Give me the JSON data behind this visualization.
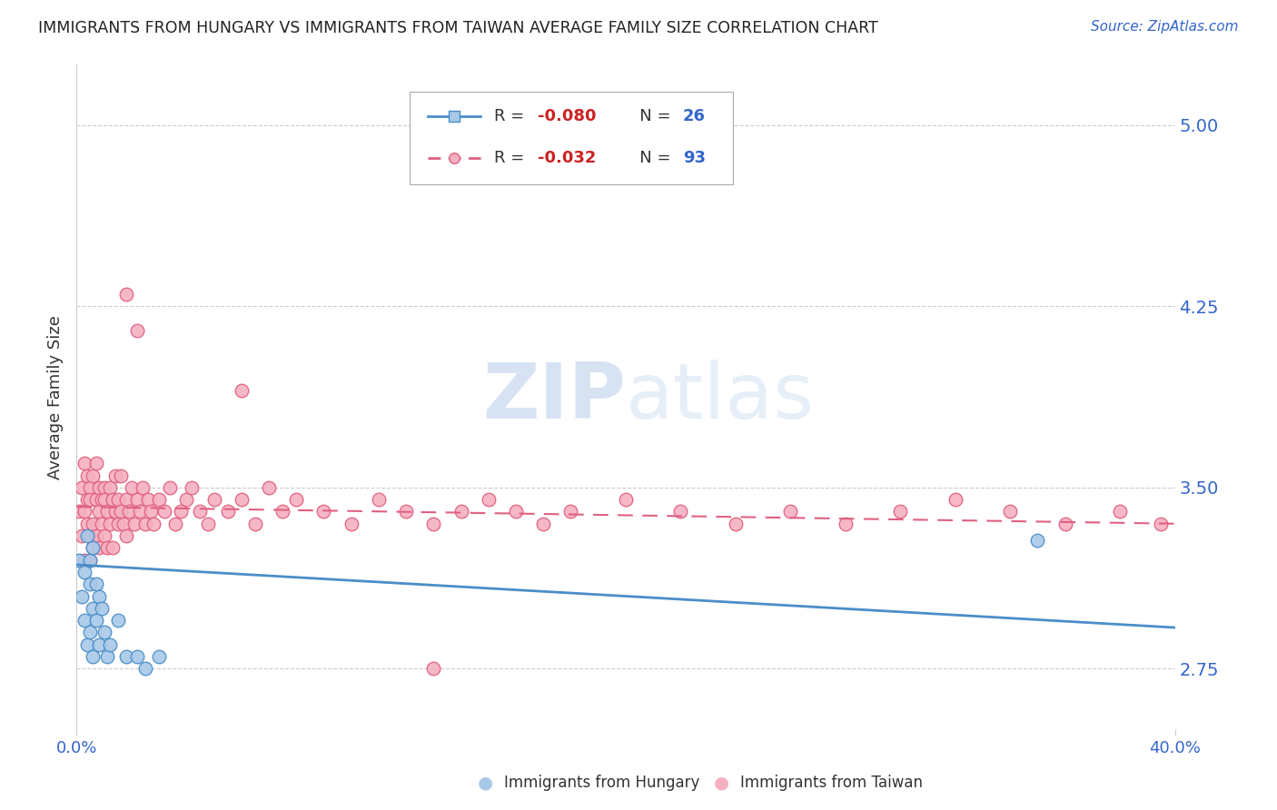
{
  "title": "IMMIGRANTS FROM HUNGARY VS IMMIGRANTS FROM TAIWAN AVERAGE FAMILY SIZE CORRELATION CHART",
  "source": "Source: ZipAtlas.com",
  "ylabel": "Average Family Size",
  "yticks": [
    2.75,
    3.5,
    4.25,
    5.0
  ],
  "xlim": [
    0.0,
    0.4
  ],
  "ylim": [
    2.5,
    5.25
  ],
  "hungary_color": "#a8c8e8",
  "taiwan_color": "#f5b0c0",
  "hungary_edge_color": "#4a8ec8",
  "taiwan_edge_color": "#e06080",
  "hungary_line_color": "#4a8ec8",
  "taiwan_line_color": "#e06080",
  "grid_color": "#cccccc",
  "watermark_zip": "ZIP",
  "watermark_atlas": "atlas",
  "r_color": "#cc2222",
  "n_color": "#3366cc",
  "ytick_color": "#3366cc",
  "xtick_color": "#3366cc",
  "hungary_x": [
    0.001,
    0.002,
    0.003,
    0.003,
    0.004,
    0.004,
    0.005,
    0.005,
    0.005,
    0.006,
    0.006,
    0.006,
    0.007,
    0.007,
    0.008,
    0.008,
    0.009,
    0.01,
    0.011,
    0.012,
    0.015,
    0.018,
    0.022,
    0.025,
    0.03,
    0.35
  ],
  "hungary_y": [
    3.2,
    3.05,
    2.95,
    3.15,
    3.3,
    2.85,
    3.1,
    2.9,
    3.2,
    3.0,
    3.25,
    2.8,
    3.1,
    2.95,
    3.05,
    2.85,
    3.0,
    2.9,
    2.8,
    2.85,
    2.95,
    2.8,
    2.8,
    2.75,
    2.8,
    3.28
  ],
  "taiwan_x": [
    0.001,
    0.002,
    0.002,
    0.003,
    0.003,
    0.003,
    0.004,
    0.004,
    0.004,
    0.005,
    0.005,
    0.005,
    0.005,
    0.006,
    0.006,
    0.006,
    0.007,
    0.007,
    0.007,
    0.008,
    0.008,
    0.008,
    0.009,
    0.009,
    0.01,
    0.01,
    0.01,
    0.011,
    0.011,
    0.012,
    0.012,
    0.013,
    0.013,
    0.014,
    0.014,
    0.015,
    0.015,
    0.016,
    0.016,
    0.017,
    0.018,
    0.018,
    0.019,
    0.02,
    0.021,
    0.022,
    0.023,
    0.024,
    0.025,
    0.026,
    0.027,
    0.028,
    0.03,
    0.032,
    0.034,
    0.036,
    0.038,
    0.04,
    0.042,
    0.045,
    0.048,
    0.05,
    0.055,
    0.06,
    0.065,
    0.07,
    0.075,
    0.08,
    0.09,
    0.1,
    0.11,
    0.12,
    0.13,
    0.14,
    0.15,
    0.16,
    0.17,
    0.18,
    0.2,
    0.22,
    0.24,
    0.26,
    0.28,
    0.3,
    0.32,
    0.34,
    0.36,
    0.38,
    0.395,
    0.018,
    0.022,
    0.06,
    0.13
  ],
  "taiwan_y": [
    3.4,
    3.5,
    3.3,
    3.6,
    3.4,
    3.2,
    3.45,
    3.55,
    3.35,
    3.5,
    3.3,
    3.45,
    3.2,
    3.55,
    3.35,
    3.25,
    3.45,
    3.6,
    3.3,
    3.4,
    3.5,
    3.25,
    3.45,
    3.35,
    3.5,
    3.3,
    3.45,
    3.4,
    3.25,
    3.5,
    3.35,
    3.45,
    3.25,
    3.4,
    3.55,
    3.35,
    3.45,
    3.4,
    3.55,
    3.35,
    3.45,
    3.3,
    3.4,
    3.5,
    3.35,
    3.45,
    3.4,
    3.5,
    3.35,
    3.45,
    3.4,
    3.35,
    3.45,
    3.4,
    3.5,
    3.35,
    3.4,
    3.45,
    3.5,
    3.4,
    3.35,
    3.45,
    3.4,
    3.45,
    3.35,
    3.5,
    3.4,
    3.45,
    3.4,
    3.35,
    3.45,
    3.4,
    3.35,
    3.4,
    3.45,
    3.4,
    3.35,
    3.4,
    3.45,
    3.4,
    3.35,
    3.4,
    3.35,
    3.4,
    3.45,
    3.4,
    3.35,
    3.4,
    3.35,
    4.3,
    4.15,
    3.9,
    2.75
  ]
}
